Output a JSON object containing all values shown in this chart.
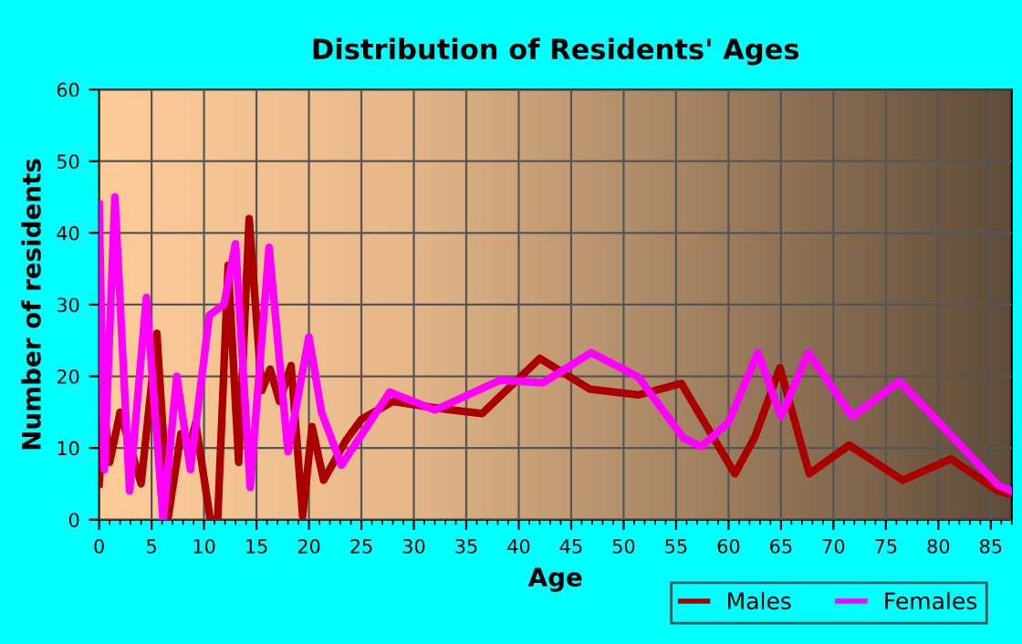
{
  "chart_data": {
    "type": "line",
    "title": "Distribution of Residents' Ages",
    "xlabel": "Age",
    "ylabel": "Number of residents",
    "xlim": [
      0,
      87
    ],
    "ylim": [
      0,
      60
    ],
    "xticks": [
      0,
      5,
      10,
      15,
      20,
      25,
      30,
      35,
      40,
      45,
      50,
      55,
      60,
      65,
      70,
      75,
      80,
      85
    ],
    "yticks": [
      0,
      10,
      20,
      30,
      40,
      50,
      60
    ],
    "grid": true,
    "legend": "bottom right",
    "line_style": "solid",
    "marker": "none",
    "series": [
      {
        "name": "Males",
        "color": "#aa0000",
        "x": [
          0,
          0.5,
          1,
          2,
          4,
          5.5,
          6.6,
          7.8,
          8.7,
          9.2,
          10.6,
          11.3,
          12.3,
          13.3,
          14.3,
          15.5,
          16.3,
          17.2,
          18.3,
          19.4,
          20.3,
          21.4,
          23.5,
          25,
          28,
          32.5,
          36.5,
          42,
          46.8,
          51.4,
          55.5,
          60.6,
          62.5,
          64.9,
          67.7,
          71.5,
          76.6,
          81.2,
          85.7,
          87
        ],
        "values": [
          5,
          15,
          8,
          15,
          5,
          26,
          0.5,
          12,
          10.5,
          13.5,
          0,
          0,
          35.5,
          8,
          42,
          18,
          21,
          16.5,
          21.5,
          0.5,
          13,
          5.5,
          11,
          14,
          16.5,
          15.5,
          14.8,
          22.5,
          18.2,
          17.4,
          19,
          6.4,
          11.5,
          21.2,
          6.4,
          10.4,
          5.5,
          8.5,
          4,
          3.5
        ]
      },
      {
        "name": "Females",
        "color": "#ff00ff",
        "x": [
          0,
          0.5,
          1.5,
          2.9,
          4.5,
          6.1,
          7.4,
          8.7,
          10.5,
          11.9,
          13,
          14.4,
          16.2,
          18,
          20,
          21.2,
          23.1,
          27.7,
          32,
          38.3,
          42.3,
          46.9,
          51.4,
          55.7,
          57.4,
          60,
          62.8,
          65,
          67.6,
          71.8,
          76.3,
          81.4,
          85.7,
          87
        ],
        "values": [
          44,
          7,
          45,
          4,
          31,
          0,
          20,
          7,
          28.5,
          30,
          38.5,
          4.5,
          38,
          9.5,
          25.5,
          15,
          7.6,
          17.8,
          15.3,
          19.5,
          19.1,
          23.3,
          19.9,
          11.4,
          10.2,
          13.6,
          23.3,
          14.4,
          23.3,
          14.4,
          19.3,
          11.5,
          4.8,
          4
        ]
      }
    ]
  }
}
